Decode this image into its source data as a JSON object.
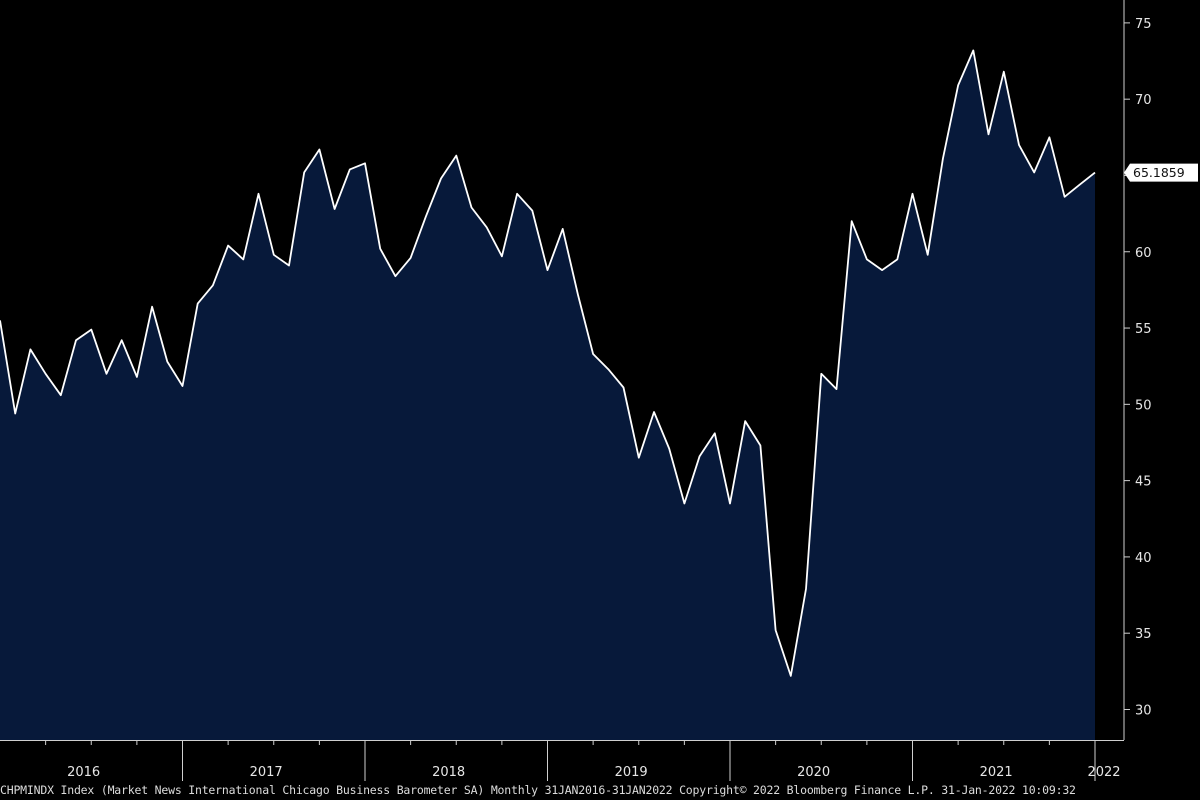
{
  "chart_data": {
    "type": "area",
    "x_start": "2016-01",
    "x_end": "2022-01",
    "frequency": "monthly",
    "x": [
      "2016-01",
      "2016-02",
      "2016-03",
      "2016-04",
      "2016-05",
      "2016-06",
      "2016-07",
      "2016-08",
      "2016-09",
      "2016-10",
      "2016-11",
      "2016-12",
      "2017-01",
      "2017-02",
      "2017-03",
      "2017-04",
      "2017-05",
      "2017-06",
      "2017-07",
      "2017-08",
      "2017-09",
      "2017-10",
      "2017-11",
      "2017-12",
      "2018-01",
      "2018-02",
      "2018-03",
      "2018-04",
      "2018-05",
      "2018-06",
      "2018-07",
      "2018-08",
      "2018-09",
      "2018-10",
      "2018-11",
      "2018-12",
      "2019-01",
      "2019-02",
      "2019-03",
      "2019-04",
      "2019-05",
      "2019-06",
      "2019-07",
      "2019-08",
      "2019-09",
      "2019-10",
      "2019-11",
      "2019-12",
      "2020-01",
      "2020-02",
      "2020-03",
      "2020-04",
      "2020-05",
      "2020-06",
      "2020-07",
      "2020-08",
      "2020-09",
      "2020-10",
      "2020-11",
      "2020-12",
      "2021-01",
      "2021-02",
      "2021-03",
      "2021-04",
      "2021-05",
      "2021-06",
      "2021-07",
      "2021-08",
      "2021-09",
      "2021-10",
      "2021-11",
      "2021-12",
      "2022-01"
    ],
    "values": [
      55.5,
      49.4,
      53.6,
      52.0,
      50.6,
      54.2,
      54.9,
      52.0,
      54.2,
      51.8,
      56.4,
      52.8,
      51.2,
      56.6,
      57.8,
      60.4,
      59.5,
      63.8,
      59.8,
      59.1,
      65.2,
      66.7,
      62.8,
      65.4,
      65.8,
      60.2,
      58.4,
      59.6,
      62.3,
      64.8,
      66.3,
      62.9,
      61.6,
      59.7,
      63.8,
      62.7,
      58.8,
      61.5,
      57.2,
      53.3,
      52.3,
      51.1,
      46.5,
      49.5,
      47.1,
      43.5,
      46.6,
      48.1,
      43.5,
      48.9,
      47.3,
      35.2,
      32.2,
      37.9,
      52.0,
      51.0,
      62.0,
      59.5,
      58.8,
      59.5,
      63.8,
      59.8,
      66.1,
      70.9,
      73.2,
      67.7,
      71.8,
      67.0,
      65.2,
      67.5,
      63.6,
      64.4,
      65.1859
    ],
    "last_value_label": "65.1859",
    "y_ticks": [
      30,
      35,
      40,
      45,
      50,
      55,
      60,
      65,
      70,
      75
    ],
    "ylim": [
      28,
      76.5
    ],
    "years": [
      "2016",
      "2017",
      "2018",
      "2019",
      "2020",
      "2021",
      "2022"
    ],
    "grid": false,
    "colors": {
      "background": "#000000",
      "fill": "#07193a",
      "line": "#ffffff",
      "axis": "#cfcfcf",
      "last_box": "#ffffff"
    }
  },
  "footer": {
    "text": "CHPMINDX Index (Market News International Chicago Business Barometer SA)  Monthly 31JAN2016-31JAN2022  Copyright© 2022 Bloomberg Finance L.P.  31-Jan-2022 10:09:32"
  }
}
